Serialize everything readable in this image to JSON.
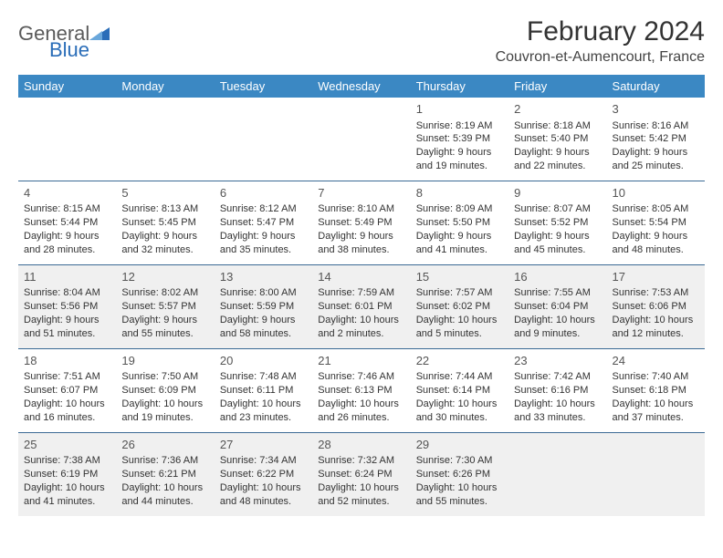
{
  "brand": {
    "name1": "General",
    "name2": "Blue"
  },
  "title": "February 2024",
  "location": "Couvron-et-Aumencourt, France",
  "colors": {
    "header_bg": "#3b88c3",
    "header_text": "#ffffff",
    "row_border": "#3b6a95",
    "shaded_bg": "#f0f0f0",
    "text": "#333333",
    "logo_gray": "#5a5a5a",
    "logo_blue": "#2a6db8"
  },
  "weekdays": [
    "Sunday",
    "Monday",
    "Tuesday",
    "Wednesday",
    "Thursday",
    "Friday",
    "Saturday"
  ],
  "weeks": [
    {
      "shaded": false,
      "days": [
        null,
        null,
        null,
        null,
        {
          "n": "1",
          "sunrise": "8:19 AM",
          "sunset": "5:39 PM",
          "daylight": "9 hours and 19 minutes."
        },
        {
          "n": "2",
          "sunrise": "8:18 AM",
          "sunset": "5:40 PM",
          "daylight": "9 hours and 22 minutes."
        },
        {
          "n": "3",
          "sunrise": "8:16 AM",
          "sunset": "5:42 PM",
          "daylight": "9 hours and 25 minutes."
        }
      ]
    },
    {
      "shaded": false,
      "days": [
        {
          "n": "4",
          "sunrise": "8:15 AM",
          "sunset": "5:44 PM",
          "daylight": "9 hours and 28 minutes."
        },
        {
          "n": "5",
          "sunrise": "8:13 AM",
          "sunset": "5:45 PM",
          "daylight": "9 hours and 32 minutes."
        },
        {
          "n": "6",
          "sunrise": "8:12 AM",
          "sunset": "5:47 PM",
          "daylight": "9 hours and 35 minutes."
        },
        {
          "n": "7",
          "sunrise": "8:10 AM",
          "sunset": "5:49 PM",
          "daylight": "9 hours and 38 minutes."
        },
        {
          "n": "8",
          "sunrise": "8:09 AM",
          "sunset": "5:50 PM",
          "daylight": "9 hours and 41 minutes."
        },
        {
          "n": "9",
          "sunrise": "8:07 AM",
          "sunset": "5:52 PM",
          "daylight": "9 hours and 45 minutes."
        },
        {
          "n": "10",
          "sunrise": "8:05 AM",
          "sunset": "5:54 PM",
          "daylight": "9 hours and 48 minutes."
        }
      ]
    },
    {
      "shaded": true,
      "days": [
        {
          "n": "11",
          "sunrise": "8:04 AM",
          "sunset": "5:56 PM",
          "daylight": "9 hours and 51 minutes."
        },
        {
          "n": "12",
          "sunrise": "8:02 AM",
          "sunset": "5:57 PM",
          "daylight": "9 hours and 55 minutes."
        },
        {
          "n": "13",
          "sunrise": "8:00 AM",
          "sunset": "5:59 PM",
          "daylight": "9 hours and 58 minutes."
        },
        {
          "n": "14",
          "sunrise": "7:59 AM",
          "sunset": "6:01 PM",
          "daylight": "10 hours and 2 minutes."
        },
        {
          "n": "15",
          "sunrise": "7:57 AM",
          "sunset": "6:02 PM",
          "daylight": "10 hours and 5 minutes."
        },
        {
          "n": "16",
          "sunrise": "7:55 AM",
          "sunset": "6:04 PM",
          "daylight": "10 hours and 9 minutes."
        },
        {
          "n": "17",
          "sunrise": "7:53 AM",
          "sunset": "6:06 PM",
          "daylight": "10 hours and 12 minutes."
        }
      ]
    },
    {
      "shaded": false,
      "days": [
        {
          "n": "18",
          "sunrise": "7:51 AM",
          "sunset": "6:07 PM",
          "daylight": "10 hours and 16 minutes."
        },
        {
          "n": "19",
          "sunrise": "7:50 AM",
          "sunset": "6:09 PM",
          "daylight": "10 hours and 19 minutes."
        },
        {
          "n": "20",
          "sunrise": "7:48 AM",
          "sunset": "6:11 PM",
          "daylight": "10 hours and 23 minutes."
        },
        {
          "n": "21",
          "sunrise": "7:46 AM",
          "sunset": "6:13 PM",
          "daylight": "10 hours and 26 minutes."
        },
        {
          "n": "22",
          "sunrise": "7:44 AM",
          "sunset": "6:14 PM",
          "daylight": "10 hours and 30 minutes."
        },
        {
          "n": "23",
          "sunrise": "7:42 AM",
          "sunset": "6:16 PM",
          "daylight": "10 hours and 33 minutes."
        },
        {
          "n": "24",
          "sunrise": "7:40 AM",
          "sunset": "6:18 PM",
          "daylight": "10 hours and 37 minutes."
        }
      ]
    },
    {
      "shaded": true,
      "days": [
        {
          "n": "25",
          "sunrise": "7:38 AM",
          "sunset": "6:19 PM",
          "daylight": "10 hours and 41 minutes."
        },
        {
          "n": "26",
          "sunrise": "7:36 AM",
          "sunset": "6:21 PM",
          "daylight": "10 hours and 44 minutes."
        },
        {
          "n": "27",
          "sunrise": "7:34 AM",
          "sunset": "6:22 PM",
          "daylight": "10 hours and 48 minutes."
        },
        {
          "n": "28",
          "sunrise": "7:32 AM",
          "sunset": "6:24 PM",
          "daylight": "10 hours and 52 minutes."
        },
        {
          "n": "29",
          "sunrise": "7:30 AM",
          "sunset": "6:26 PM",
          "daylight": "10 hours and 55 minutes."
        },
        null,
        null
      ]
    }
  ],
  "labels": {
    "sunrise_prefix": "Sunrise: ",
    "sunset_prefix": "Sunset: ",
    "daylight_prefix": "Daylight: "
  }
}
